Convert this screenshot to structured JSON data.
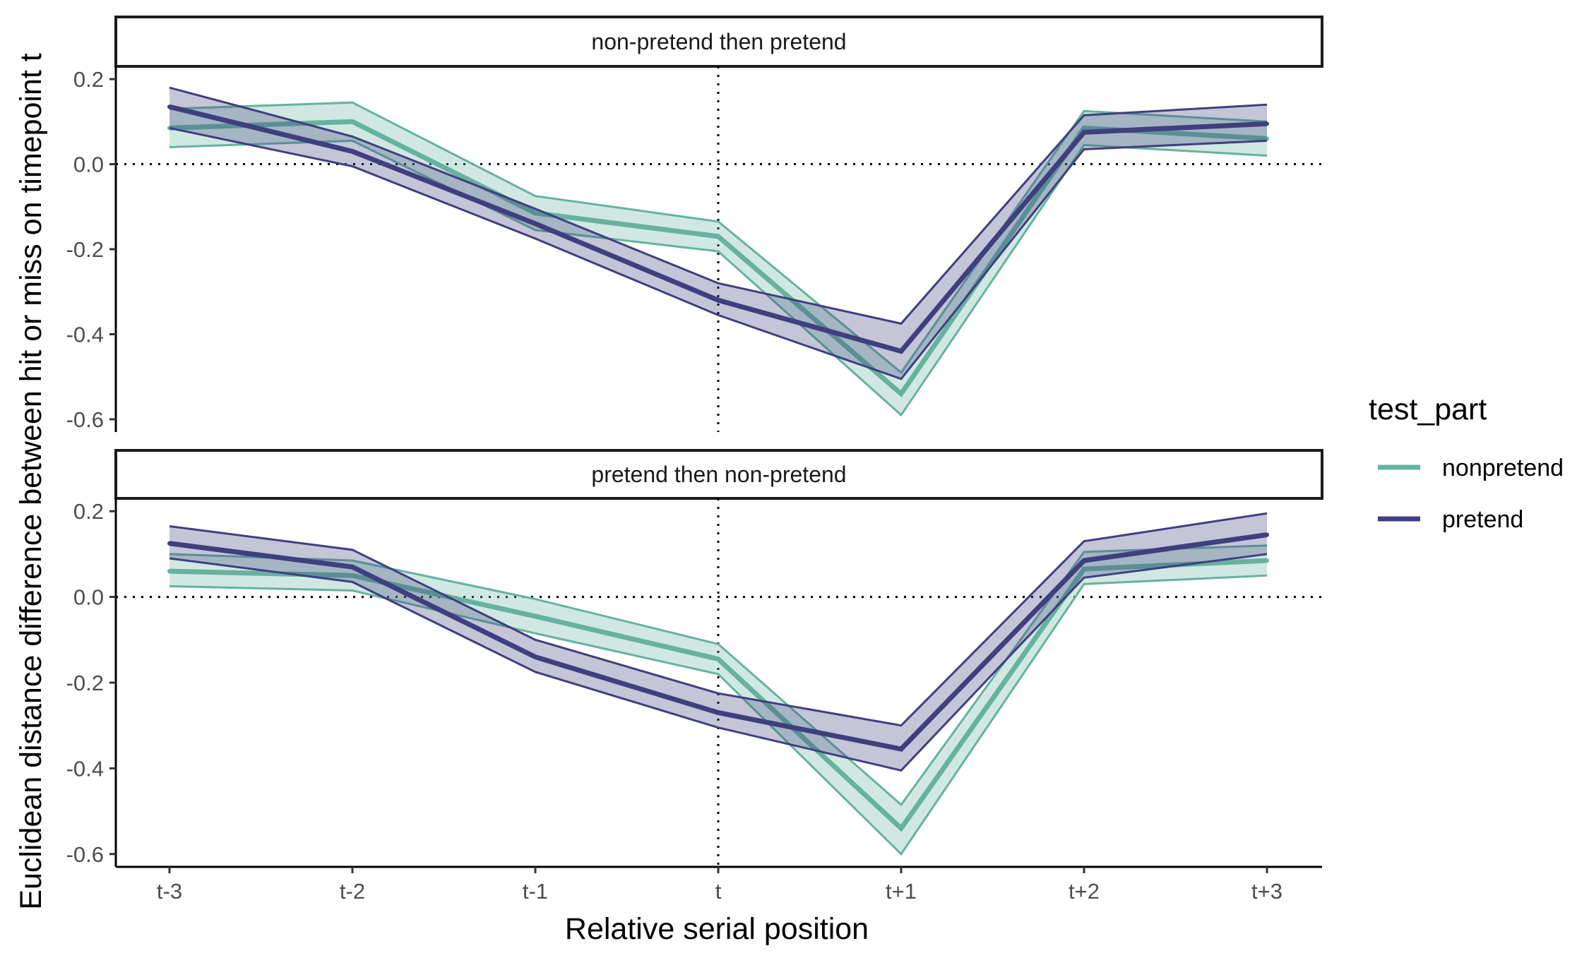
{
  "chart_data": {
    "type": "line",
    "xlabel": "Relative serial position",
    "ylabel": "Euclidean distance difference between hit or miss on timepoint t",
    "categories": [
      "t-3",
      "t-2",
      "t-1",
      "t",
      "t+1",
      "t+2",
      "t+3"
    ],
    "ylim": [
      -0.63,
      0.23
    ],
    "yticks": [
      0.2,
      0.0,
      -0.2,
      -0.4,
      -0.6
    ],
    "ytick_labels": [
      "0.2",
      "0.0",
      "-0.2",
      "-0.4",
      "-0.6"
    ],
    "reference_lines": {
      "y": 0.0,
      "x": "t",
      "style": "dotted"
    },
    "grid": false,
    "legend": {
      "title": "test_part",
      "position": "right",
      "entries": [
        "nonpretend",
        "pretend"
      ]
    },
    "colors": {
      "nonpretend": "#66b2a0",
      "pretend": "#3f3f7f"
    },
    "panels": [
      {
        "strip": "non-pretend then pretend",
        "series": [
          {
            "name": "nonpretend",
            "values": [
              0.085,
              0.1,
              -0.115,
              -0.17,
              -0.54,
              0.085,
              0.06
            ],
            "lower": [
              0.04,
              0.055,
              -0.155,
              -0.205,
              -0.59,
              0.045,
              0.02
            ],
            "upper": [
              0.13,
              0.145,
              -0.075,
              -0.135,
              -0.49,
              0.125,
              0.1
            ]
          },
          {
            "name": "pretend",
            "values": [
              0.135,
              0.03,
              -0.14,
              -0.32,
              -0.44,
              0.075,
              0.095
            ],
            "lower": [
              0.085,
              -0.005,
              -0.175,
              -0.355,
              -0.505,
              0.035,
              0.055
            ],
            "upper": [
              0.18,
              0.065,
              -0.105,
              -0.28,
              -0.375,
              0.115,
              0.14
            ]
          }
        ]
      },
      {
        "strip": "pretend then non-pretend",
        "series": [
          {
            "name": "nonpretend",
            "values": [
              0.06,
              0.05,
              -0.045,
              -0.145,
              -0.54,
              0.065,
              0.085
            ],
            "lower": [
              0.025,
              0.015,
              -0.085,
              -0.18,
              -0.6,
              0.03,
              0.05
            ],
            "upper": [
              0.1,
              0.085,
              -0.005,
              -0.11,
              -0.485,
              0.105,
              0.12
            ]
          },
          {
            "name": "pretend",
            "values": [
              0.125,
              0.07,
              -0.14,
              -0.27,
              -0.355,
              0.085,
              0.145
            ],
            "lower": [
              0.09,
              0.035,
              -0.175,
              -0.305,
              -0.405,
              0.045,
              0.1
            ],
            "upper": [
              0.165,
              0.11,
              -0.1,
              -0.225,
              -0.3,
              0.13,
              0.195
            ]
          }
        ]
      }
    ]
  }
}
